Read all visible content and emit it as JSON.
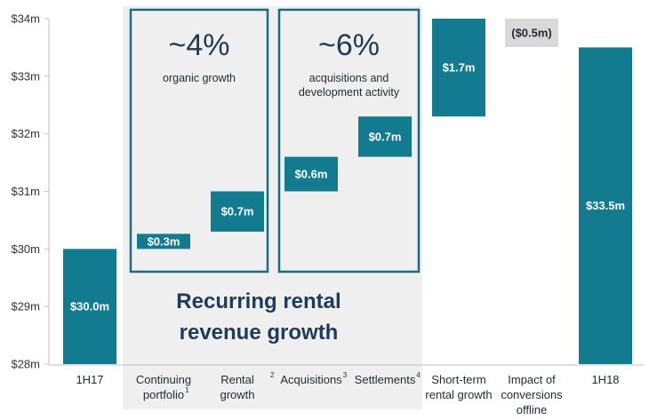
{
  "chart_data": {
    "type": "waterfall",
    "y_unit": "$m",
    "ylim": [
      28,
      34
    ],
    "y_ticks": [
      "$28m",
      "$29m",
      "$30m",
      "$31m",
      "$32m",
      "$33m",
      "$34m"
    ],
    "bars": [
      {
        "category": "1H17",
        "superscript": "",
        "kind": "total",
        "start": 28,
        "end": 30.0,
        "label": "$30.0m"
      },
      {
        "category": "Continuing portfolio",
        "superscript": "1",
        "kind": "increase",
        "start": 30.0,
        "end": 30.3,
        "label": "$0.3m"
      },
      {
        "category": "Rental growth",
        "superscript": "2",
        "kind": "increase",
        "start": 30.3,
        "end": 31.0,
        "label": "$0.7m"
      },
      {
        "category": "Acquisitions",
        "superscript": "3",
        "kind": "increase",
        "start": 31.0,
        "end": 31.6,
        "label": "$0.6m"
      },
      {
        "category": "Settlements",
        "superscript": "4",
        "kind": "increase",
        "start": 31.6,
        "end": 32.3,
        "label": "$0.7m"
      },
      {
        "category": "Short-term rental growth",
        "superscript": "",
        "kind": "increase",
        "start": 32.3,
        "end": 34.0,
        "label": "$1.7m"
      },
      {
        "category": "Impact of conversions offline",
        "superscript": "",
        "kind": "decrease",
        "start": 34.0,
        "end": 33.5,
        "label": "($0.5m)"
      },
      {
        "category": "1H18",
        "superscript": "",
        "kind": "total",
        "start": 28,
        "end": 33.5,
        "label": "$33.5m"
      }
    ],
    "groups": [
      {
        "headline": "~4%",
        "subtitle_lines": [
          "organic growth"
        ],
        "bars": [
          1,
          2
        ]
      },
      {
        "headline": "~6%",
        "subtitle_lines": [
          "acquisitions and",
          "development activity"
        ],
        "bars": [
          3,
          4
        ]
      }
    ],
    "callout_lines": [
      "Recurring rental",
      "revenue growth"
    ]
  },
  "colors": {
    "bar": "#127b8f",
    "decrease_bar": "#d9d9d9",
    "group_border": "#1d6b80",
    "shaded_region": "#efefef",
    "headline_text": "#1f3b57"
  }
}
